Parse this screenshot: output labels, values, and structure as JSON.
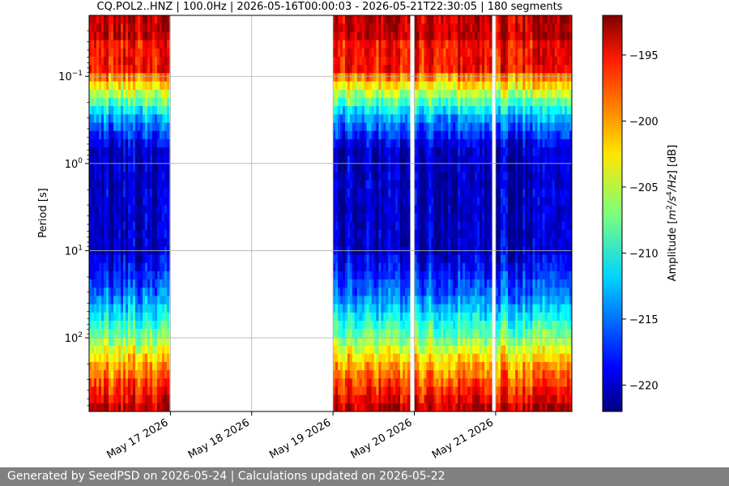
{
  "chart_data": {
    "type": "heatmap",
    "title": "CQ.POL2..HNZ | 100.0Hz | 2026-05-16T00:00:03 - 2026-05-21T22:30:05 | 180 segments",
    "ylabel": "Period [s]",
    "yscale": "log",
    "yaxis_inverted": true,
    "ylim": [
      0.02,
      700
    ],
    "x_range": [
      "2026-05-16T00:00:03",
      "2026-05-21T22:30:05"
    ],
    "x_ticks": [
      {
        "date": "2026-05-17",
        "label": "May 17 2026"
      },
      {
        "date": "2026-05-18",
        "label": "May 18 2026"
      },
      {
        "date": "2026-05-19",
        "label": "May 19 2026"
      },
      {
        "date": "2026-05-20",
        "label": "May 20 2026"
      },
      {
        "date": "2026-05-21",
        "label": "May 21 2026"
      }
    ],
    "y_ticks": [
      {
        "value": 0.1,
        "base": "10",
        "exp": "−1"
      },
      {
        "value": 1,
        "base": "10",
        "exp": "0"
      },
      {
        "value": 10,
        "base": "10",
        "exp": "1"
      },
      {
        "value": 100,
        "base": "10",
        "exp": "2"
      }
    ],
    "data_intervals": [
      [
        "2026-05-16T00:00:03",
        "2026-05-16T23:40:00"
      ],
      [
        "2026-05-19T00:00:00",
        "2026-05-19T22:40:00"
      ],
      [
        "2026-05-20T00:00:00",
        "2026-05-20T22:50:00"
      ],
      [
        "2026-05-21T00:00:00",
        "2026-05-21T22:30:05"
      ]
    ],
    "colorbar": {
      "label_prefix": "Amplitude [",
      "label_unit_m": "m",
      "label_exp_2": "2",
      "label_unit_s": "/s",
      "label_exp_4": "4",
      "label_unit_hz": "/Hz",
      "label_suffix": "] [dB]",
      "range": [
        -222,
        -192
      ],
      "ticks": [
        {
          "value": -195,
          "label": "−195"
        },
        {
          "value": -200,
          "label": "−200"
        },
        {
          "value": -205,
          "label": "−205"
        },
        {
          "value": -210,
          "label": "−210"
        },
        {
          "value": -215,
          "label": "−215"
        },
        {
          "value": -220,
          "label": "−220"
        }
      ],
      "colormap": "jet"
    },
    "grid": true
  },
  "footer": {
    "text": "Generated by SeedPSD on 2026-05-24 | Calculations updated on 2026-05-22"
  }
}
